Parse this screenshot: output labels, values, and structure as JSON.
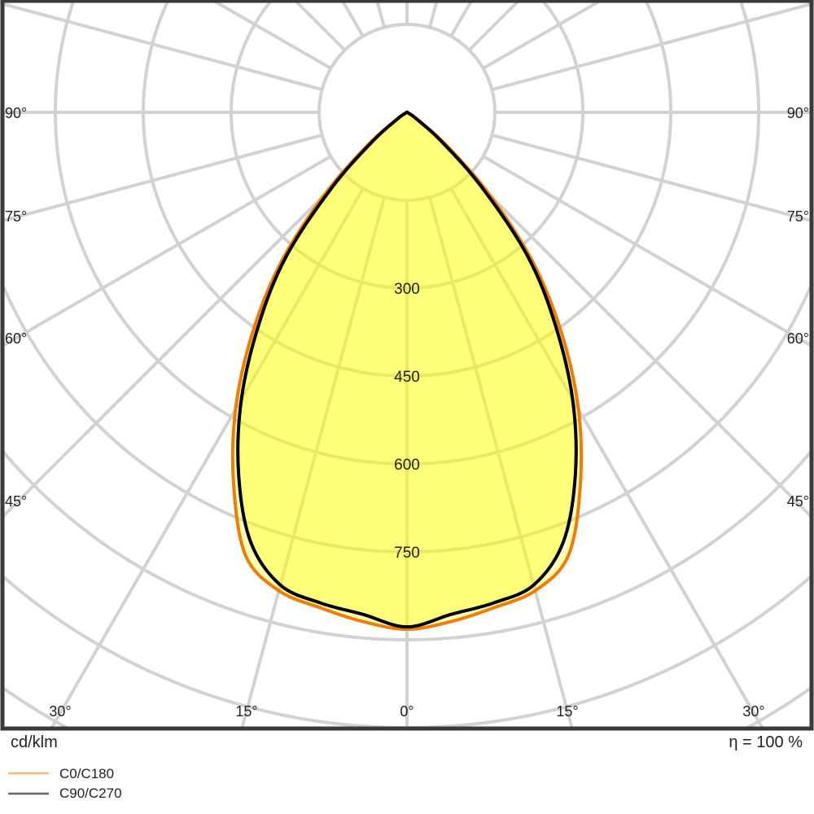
{
  "chart_data": {
    "type": "polar",
    "unit_label": "cd/klm",
    "efficiency_label": "η = 100 %",
    "angle_unit": "degrees",
    "radial_ticks": [
      150,
      300,
      450,
      600,
      750,
      900,
      1050
    ],
    "radial_tick_labels": [
      "300",
      "450",
      "600",
      "750"
    ],
    "side_angle_labels": [
      "90°",
      "75°",
      "60°",
      "45°"
    ],
    "bottom_angle_labels": [
      "30°",
      "15°",
      "0°",
      "15°",
      "30°"
    ],
    "angle_grid_step": 15,
    "grid": true,
    "legend_position": "bottom-left",
    "angles": [
      0,
      5,
      10,
      15,
      20,
      25,
      30,
      35,
      40,
      45,
      50,
      55,
      60,
      65,
      70,
      75,
      80,
      85,
      90
    ],
    "series": [
      {
        "name": "C0/C180",
        "color": "#f07c00",
        "legend_color": "#f7b77a",
        "values": [
          882,
          872,
          858,
          845,
          805,
          700,
          585,
          460,
          335,
          200,
          90,
          25,
          5,
          0,
          0,
          0,
          0,
          0,
          0
        ]
      },
      {
        "name": "C90/C270",
        "color": "#000000",
        "legend_color": "#666666",
        "values": [
          878,
          860,
          850,
          835,
          780,
          680,
          565,
          440,
          320,
          180,
          75,
          20,
          5,
          0,
          0,
          0,
          0,
          0,
          0
        ]
      }
    ],
    "fill_color": "#ffff00",
    "grid_color": "#d2d2d2",
    "frame_color": "#3a3a3a"
  }
}
